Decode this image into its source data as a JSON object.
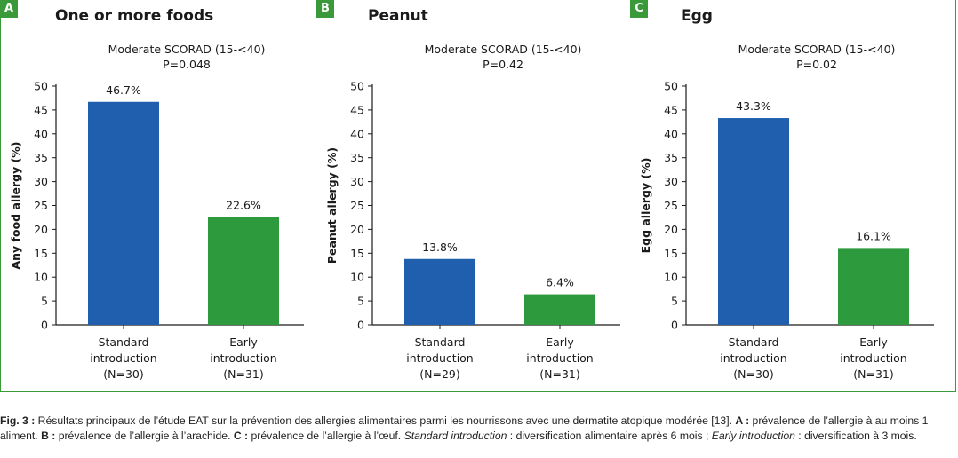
{
  "colors": {
    "standard": "#1f5fae",
    "early": "#2e9a3e",
    "frame": "#3a9a3a"
  },
  "panels": [
    {
      "letter": "A",
      "title": "One or more foods",
      "subtitle": "Moderate SCORAD (15-<40)",
      "pvalue": "P=0.048"
    },
    {
      "letter": "B",
      "title": "Peanut",
      "subtitle": "Moderate SCORAD (15-<40)",
      "pvalue": "P=0.42"
    },
    {
      "letter": "C",
      "title": "Egg",
      "subtitle": "Moderate SCORAD (15-<40)",
      "pvalue": "P=0.02"
    }
  ],
  "chart_data": [
    {
      "type": "bar",
      "title": "One or more foods",
      "subtitle": "Moderate SCORAD (15-<40)",
      "annotation": "P=0.048",
      "ylabel": "Any food allergy (%)",
      "ylim": [
        0,
        50
      ],
      "yticks": [
        0,
        5,
        10,
        15,
        20,
        25,
        30,
        35,
        40,
        45,
        50
      ],
      "categories": [
        [
          "Standard",
          "introduction",
          "(N=30)"
        ],
        [
          "Early",
          "introduction",
          "(N=31)"
        ]
      ],
      "values": [
        46.7,
        22.6
      ],
      "value_labels": [
        "46.7%",
        "22.6%"
      ]
    },
    {
      "type": "bar",
      "title": "Peanut",
      "subtitle": "Moderate SCORAD (15-<40)",
      "annotation": "P=0.42",
      "ylabel": "Peanut allergy (%)",
      "ylim": [
        0,
        50
      ],
      "yticks": [
        0,
        5,
        10,
        15,
        20,
        25,
        30,
        35,
        40,
        45,
        50
      ],
      "categories": [
        [
          "Standard",
          "introduction",
          "(N=29)"
        ],
        [
          "Early",
          "introduction",
          "(N=31)"
        ]
      ],
      "values": [
        13.8,
        6.4
      ],
      "value_labels": [
        "13.8%",
        "6.4%"
      ]
    },
    {
      "type": "bar",
      "title": "Egg",
      "subtitle": "Moderate SCORAD (15-<40)",
      "annotation": "P=0.02",
      "ylabel": "Egg allergy (%)",
      "ylim": [
        0,
        50
      ],
      "yticks": [
        0,
        5,
        10,
        15,
        20,
        25,
        30,
        35,
        40,
        45,
        50
      ],
      "categories": [
        [
          "Standard",
          "introduction",
          "(N=30)"
        ],
        [
          "Early",
          "introduction",
          "(N=31)"
        ]
      ],
      "values": [
        43.3,
        16.1
      ],
      "value_labels": [
        "43.3%",
        "16.1%"
      ]
    }
  ],
  "caption": {
    "fig": "Fig. 3 :",
    "text1": " Résultats principaux de l’étude EAT sur la prévention des allergies alimentaires parmi les nourrissons avec une dermatite atopique modérée [13]. ",
    "a": "A :",
    "text2": " prévalence de l’allergie à au moins 1 aliment. ",
    "b": "B :",
    "text3": " prévalence de l’allergie à l’arachide. ",
    "c": "C :",
    "text4": " prévalence de l’allergie à l’œuf. ",
    "std": "Standard introduction",
    "text5": " : diversification alimentaire après 6 mois ; ",
    "early": "Early introduction",
    "text6": " : diversification à 3 mois."
  }
}
